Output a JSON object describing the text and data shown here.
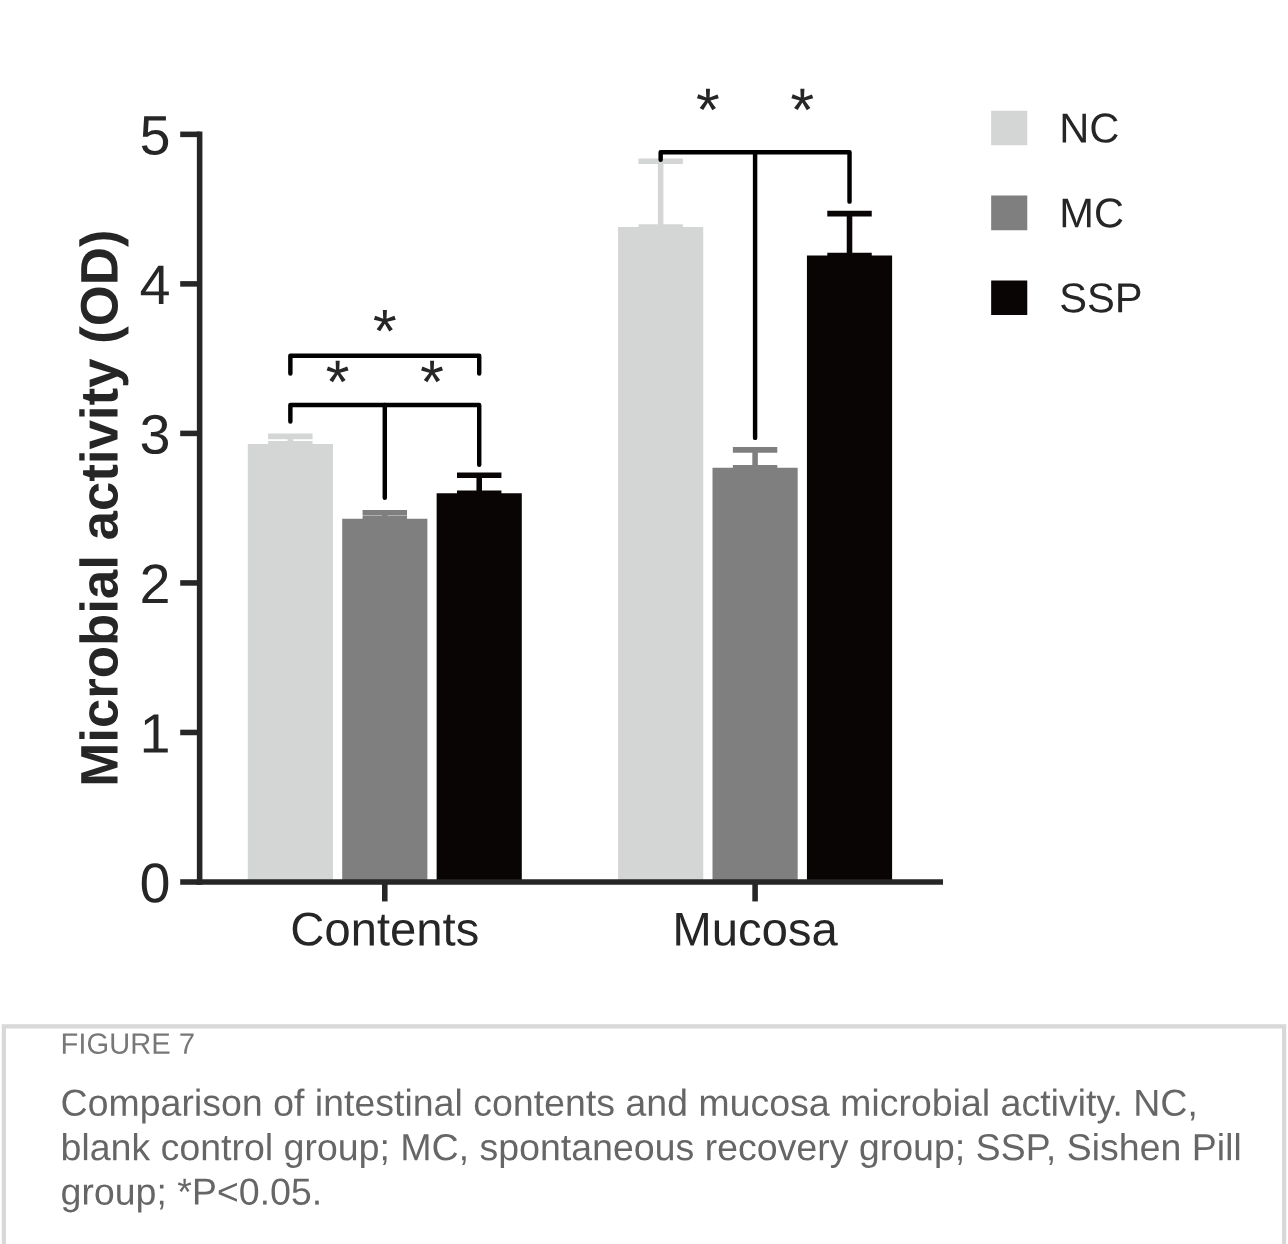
{
  "chart_data": {
    "type": "bar",
    "ylabel": "Microbial activity (OD)",
    "categories": [
      "Contents",
      "Mucosa"
    ],
    "series": [
      {
        "name": "NC",
        "color": "#d4d6d5",
        "values": [
          2.93,
          4.38
        ],
        "errors": [
          [
            2.93,
            2.98
          ],
          [
            4.38,
            4.82
          ]
        ]
      },
      {
        "name": "MC",
        "color": "#7f7f7f",
        "values": [
          2.43,
          2.77
        ],
        "errors": [
          [
            2.43,
            2.47
          ],
          [
            2.77,
            2.89
          ]
        ]
      },
      {
        "name": "SSP",
        "color": "#0a0505",
        "values": [
          2.6,
          4.19
        ],
        "errors": [
          [
            2.6,
            2.72
          ],
          [
            4.19,
            4.47
          ]
        ]
      }
    ],
    "ylim": [
      0,
      5
    ],
    "yticks": [
      0,
      1,
      2,
      3,
      4,
      5
    ],
    "grid": false,
    "legend": "top right",
    "annotations": [
      "*",
      "*",
      "*",
      "*",
      "*",
      "FIGURE 7",
      "Comparison of intestinal contents and mucosa microbial activity. NC, blank control group; MC, spontaneous recovery group; SSP, Sishen Pill group; *P<0.05."
    ]
  }
}
